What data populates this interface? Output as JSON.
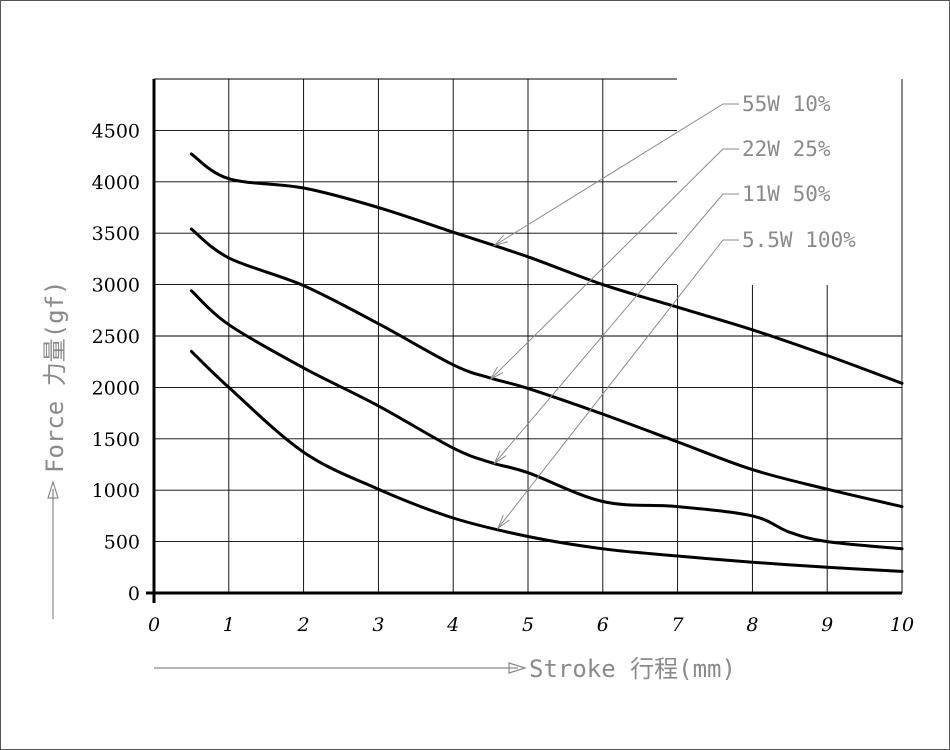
{
  "chart_data": {
    "type": "line",
    "title": "",
    "xlabel": "Stroke 行程(mm)",
    "ylabel": "Force 力量(gf)",
    "xlim": [
      0,
      10
    ],
    "ylim": [
      0,
      5000
    ],
    "x_ticks": [
      "0",
      "1",
      "2",
      "3",
      "4",
      "5",
      "6",
      "7",
      "8",
      "9",
      "10"
    ],
    "y_ticks": [
      "0",
      "500",
      "1000",
      "1500",
      "2000",
      "2500",
      "3000",
      "3500",
      "4000",
      "4500"
    ],
    "grid": true,
    "legend_placement": "top-right, with leader lines to curves",
    "colors": {
      "line": "#000000",
      "grid": "#000000",
      "label_text": "#8a8a8a",
      "border": "#555555"
    },
    "series": [
      {
        "name": "55W 10%",
        "x": [
          0.5,
          1,
          2,
          3,
          4,
          5,
          6,
          7,
          8,
          9,
          10
        ],
        "y": [
          4270,
          4030,
          3940,
          3750,
          3510,
          3270,
          3000,
          2780,
          2560,
          2310,
          2040
        ]
      },
      {
        "name": "22W 25%",
        "x": [
          0.5,
          1,
          2,
          3,
          4,
          4.5,
          5,
          6,
          7,
          8,
          9,
          10
        ],
        "y": [
          3540,
          3260,
          2990,
          2620,
          2220,
          2090,
          1990,
          1740,
          1470,
          1200,
          1010,
          840
        ]
      },
      {
        "name": "11W 50%",
        "x": [
          0.5,
          1,
          2,
          3,
          4,
          4.5,
          5,
          6,
          7,
          8,
          8.5,
          9,
          10
        ],
        "y": [
          2940,
          2610,
          2190,
          1820,
          1410,
          1270,
          1170,
          890,
          840,
          750,
          590,
          500,
          430
        ]
      },
      {
        "name": "5.5W 100%",
        "x": [
          0.5,
          1,
          2,
          3,
          4,
          5,
          6,
          7,
          8,
          9,
          10
        ],
        "y": [
          2350,
          2000,
          1370,
          1010,
          730,
          550,
          430,
          360,
          300,
          250,
          210
        ]
      }
    ]
  }
}
